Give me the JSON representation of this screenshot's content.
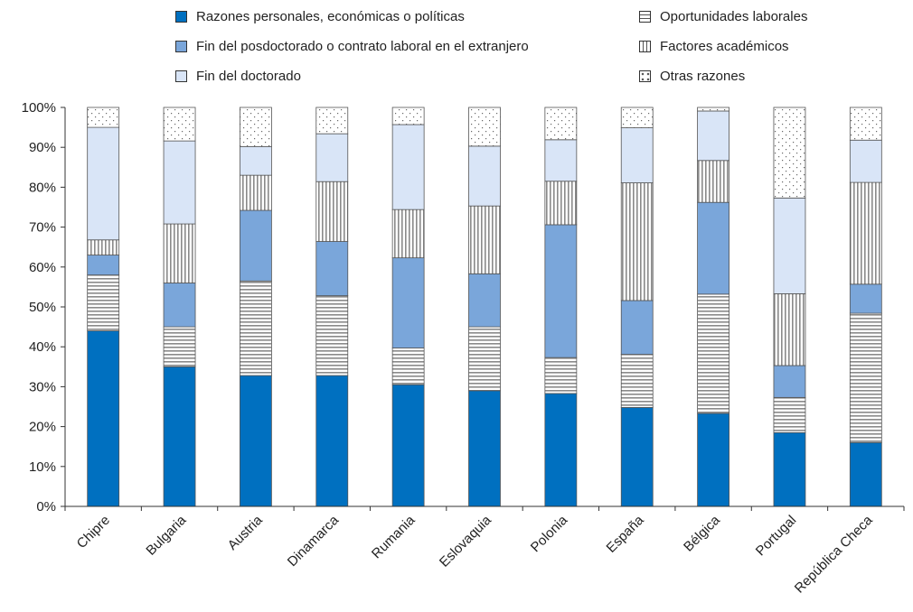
{
  "chart_data": {
    "type": "bar",
    "stacked": true,
    "title": "",
    "xlabel": "",
    "ylabel": "",
    "ylim": [
      0,
      100
    ],
    "y_ticks": [
      "0%",
      "10%",
      "20%",
      "30%",
      "40%",
      "50%",
      "60%",
      "70%",
      "80%",
      "90%",
      "100%"
    ],
    "grid": false,
    "legend_position": "top",
    "categories": [
      "Chipre",
      "Bulgaria",
      "Austria",
      "Dinamarca",
      "Rumania",
      "Eslovaquia",
      "Polonia",
      "España",
      "Bélgica",
      "Portugal",
      "República Checa"
    ],
    "series": [
      {
        "name": "Razones personales, económicas o políticas",
        "color": "#0070c0",
        "pattern": "solid",
        "values": [
          44.0,
          35.0,
          32.8,
          32.8,
          30.5,
          29.0,
          28.3,
          24.8,
          23.3,
          18.5,
          16.0
        ]
      },
      {
        "name": "Oportunidades laborales",
        "color": "#ffffff",
        "pattern": "horizontal",
        "values": [
          14.0,
          10.0,
          23.7,
          20.0,
          9.2,
          16.0,
          9.0,
          13.3,
          29.9,
          8.8,
          32.4
        ]
      },
      {
        "name": "Fin del posdoctorado o contrato laboral en el extranjero",
        "color": "#7aa6da",
        "pattern": "solid",
        "values": [
          5.0,
          11.0,
          17.7,
          13.6,
          22.6,
          13.3,
          33.3,
          13.5,
          23.0,
          8.0,
          7.3
        ]
      },
      {
        "name": "Factores académicos",
        "color": "#ffffff",
        "pattern": "vertical",
        "values": [
          3.8,
          14.8,
          8.8,
          15.0,
          12.1,
          17.0,
          10.9,
          29.5,
          10.5,
          18.0,
          25.5
        ]
      },
      {
        "name": "Fin del doctorado",
        "color": "#d9e5f7",
        "pattern": "solid",
        "values": [
          28.2,
          20.8,
          7.2,
          12.0,
          21.3,
          15.0,
          10.4,
          13.8,
          12.4,
          24.0,
          10.6
        ]
      },
      {
        "name": "Otras razones",
        "color": "#ffffff",
        "pattern": "dots",
        "values": [
          5.0,
          8.4,
          9.8,
          6.6,
          4.3,
          9.7,
          8.1,
          5.1,
          0.9,
          22.7,
          8.2
        ]
      }
    ],
    "legend": [
      {
        "label": "Razones personales, económicas o políticas",
        "swatch": "solid-dark"
      },
      {
        "label": "Fin del posdoctorado o contrato laboral en el extranjero",
        "swatch": "solid-mid"
      },
      {
        "label": "Fin del doctorado",
        "swatch": "solid-light"
      },
      {
        "label": "Oportunidades laborales",
        "swatch": "horizontal"
      },
      {
        "label": "Factores académicos",
        "swatch": "vertical"
      },
      {
        "label": "Otras razones",
        "swatch": "dots"
      }
    ]
  }
}
